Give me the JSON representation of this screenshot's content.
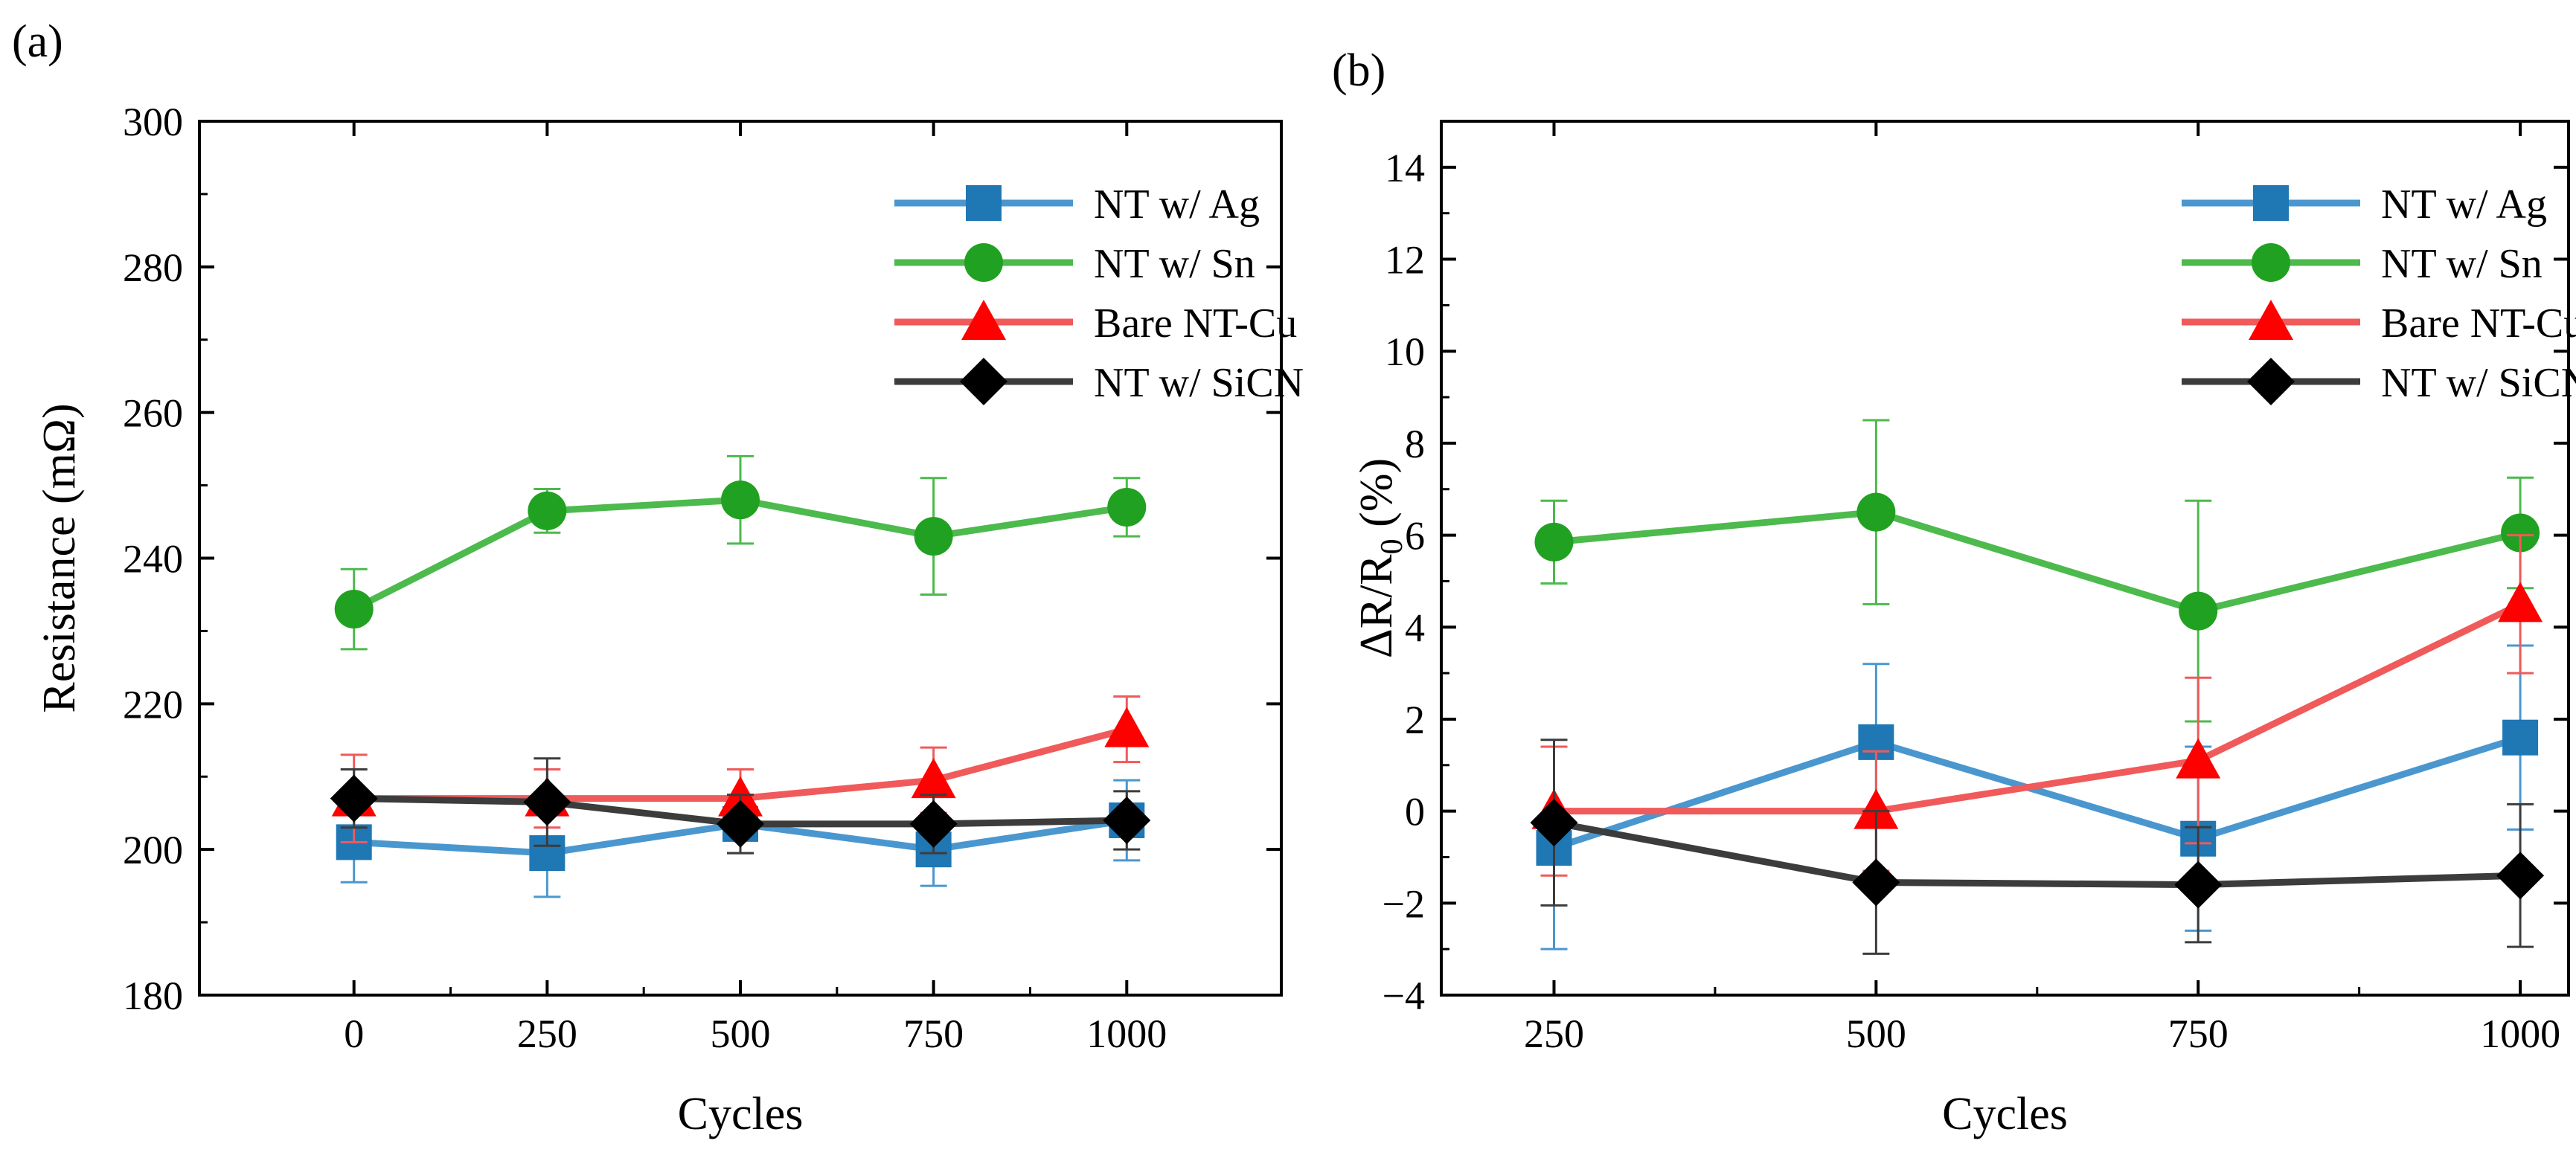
{
  "chart_data": [
    {
      "panel": "(a)",
      "type": "line",
      "xlabel": "Cycles",
      "ylabel": "Resistance (mΩ)",
      "xlim": [
        -200,
        1200
      ],
      "ylim": [
        180,
        300
      ],
      "xticks": [
        0,
        250,
        500,
        750,
        1000
      ],
      "xtick_labels": [
        "0",
        "250",
        "500",
        "750",
        "1000"
      ],
      "yticks": [
        180,
        200,
        220,
        240,
        260,
        280,
        300
      ],
      "ytick_labels": [
        "180",
        "200",
        "220",
        "240",
        "260",
        "280",
        "300"
      ],
      "legend_position": "top-right",
      "x": [
        0,
        250,
        500,
        750,
        1000
      ],
      "series": [
        {
          "name": "NT w/ Ag",
          "color": "#1f77b4",
          "line_color": "#4a97cf",
          "marker": "square",
          "values": [
            201,
            199.5,
            203.5,
            200,
            204
          ],
          "errors": [
            5.5,
            6,
            4,
            5,
            5.5
          ]
        },
        {
          "name": "NT w/ Sn",
          "color": "#21a121",
          "line_color": "#4cba4c",
          "marker": "circle",
          "values": [
            233,
            246.5,
            248,
            243,
            247
          ],
          "errors": [
            5.5,
            3,
            6,
            8,
            4
          ]
        },
        {
          "name": "Bare NT-Cu",
          "color": "#ff0000",
          "line_color": "#f05a5a",
          "marker": "triangle",
          "values": [
            207,
            207,
            207,
            209.5,
            216.5
          ],
          "errors": [
            6,
            4,
            4,
            4.5,
            4.5
          ]
        },
        {
          "name": "NT w/ SiCN",
          "color": "#000000",
          "line_color": "#3c3c3c",
          "marker": "diamond",
          "values": [
            207,
            206.5,
            203.5,
            203.5,
            204
          ],
          "errors": [
            4,
            6,
            4,
            4,
            4
          ]
        }
      ]
    },
    {
      "panel": "(b)",
      "type": "line",
      "xlabel": "Cycles",
      "ylabel": "ΔR/R₀ (%)",
      "ylabel_main": "ΔR/R",
      "ylabel_sub": "0",
      "ylabel_tail": " (%)",
      "xlim": [
        162.5,
        1037.5
      ],
      "ylim": [
        -4,
        15
      ],
      "xticks": [
        250,
        500,
        750,
        1000
      ],
      "xtick_labels": [
        "250",
        "500",
        "750",
        "1000"
      ],
      "yticks": [
        -4,
        -2,
        0,
        2,
        4,
        6,
        8,
        10,
        12,
        14
      ],
      "ytick_labels": [
        "−4",
        "−2",
        "0",
        "2",
        "4",
        "6",
        "8",
        "10",
        "12",
        "14"
      ],
      "legend_position": "top-right",
      "x": [
        250,
        500,
        750,
        1000
      ],
      "series": [
        {
          "name": "NT w/ Ag",
          "color": "#1f77b4",
          "line_color": "#4a97cf",
          "marker": "square",
          "values": [
            -0.8,
            1.5,
            -0.6,
            1.6
          ],
          "errors": [
            2.2,
            1.7,
            2.0,
            2.0
          ]
        },
        {
          "name": "NT w/ Sn",
          "color": "#21a121",
          "line_color": "#4cba4c",
          "marker": "circle",
          "values": [
            5.85,
            6.5,
            4.35,
            6.05
          ],
          "errors": [
            0.9,
            2.0,
            2.4,
            1.2
          ]
        },
        {
          "name": "Bare NT-Cu",
          "color": "#ff0000",
          "line_color": "#f05a5a",
          "marker": "triangle",
          "values": [
            0,
            0,
            1.1,
            4.5
          ],
          "errors": [
            1.4,
            1.3,
            1.8,
            1.5
          ]
        },
        {
          "name": "NT w/ SiCN",
          "color": "#000000",
          "line_color": "#3c3c3c",
          "marker": "diamond",
          "values": [
            -0.25,
            -1.55,
            -1.6,
            -1.4
          ],
          "errors": [
            1.8,
            1.55,
            1.25,
            1.55
          ]
        }
      ]
    }
  ]
}
